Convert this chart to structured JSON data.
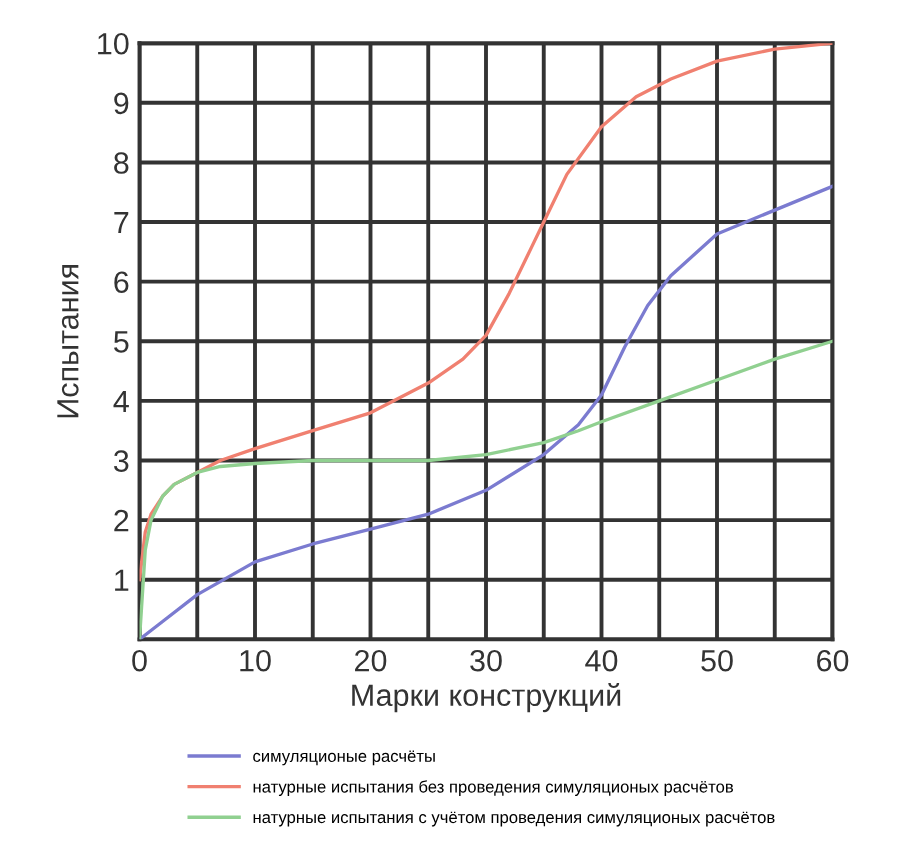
{
  "chart_data": {
    "type": "line",
    "xlabel": "Марки конструкций",
    "ylabel": "Испытания",
    "xlim": [
      0,
      60
    ],
    "ylim": [
      0,
      10
    ],
    "xticks": [
      0,
      {
        "value": 5,
        "label": null
      },
      10,
      {
        "value": 15,
        "label": null
      },
      20,
      {
        "value": 25,
        "label": null
      },
      30,
      {
        "value": 35,
        "label": null
      },
      40,
      {
        "value": 45,
        "label": null
      },
      50,
      {
        "value": 55,
        "label": null
      },
      60
    ],
    "yticks": [
      {
        "value": 0,
        "label": null
      },
      1,
      2,
      3,
      4,
      5,
      6,
      7,
      8,
      9,
      10
    ],
    "grid": true,
    "legend": "bottom",
    "marker": "none",
    "line_style": "solid",
    "series": [
      {
        "name": "симуляционые расчёты",
        "color": "#7b7bd0",
        "x": [
          0,
          2,
          5,
          10,
          15,
          20,
          25,
          30,
          35,
          38,
          40,
          42,
          44,
          46,
          50,
          55,
          60
        ],
        "values": [
          0,
          0.3,
          0.75,
          1.3,
          1.6,
          1.85,
          2.1,
          2.5,
          3.1,
          3.6,
          4.1,
          4.9,
          5.6,
          6.1,
          6.8,
          7.2,
          7.6
        ]
      },
      {
        "name": "натурные испытания без проведения симуляционых расчётов",
        "color": "#f08070",
        "x": [
          0,
          0.5,
          1,
          2,
          3,
          5,
          7,
          10,
          15,
          20,
          25,
          28,
          30,
          32,
          34,
          35,
          37,
          40,
          43,
          46,
          50,
          55,
          60
        ],
        "values": [
          1.0,
          1.8,
          2.1,
          2.4,
          2.6,
          2.8,
          3.0,
          3.2,
          3.5,
          3.8,
          4.3,
          4.7,
          5.1,
          5.8,
          6.6,
          7.0,
          7.8,
          8.6,
          9.1,
          9.4,
          9.7,
          9.9,
          10
        ]
      },
      {
        "name": "натурные испытания с учётом проведения симуляционых расчётов",
        "color": "#90d090",
        "x": [
          0,
          0.5,
          1,
          2,
          3,
          5,
          7,
          10,
          15,
          20,
          25,
          30,
          35,
          38,
          40,
          45,
          50,
          55,
          60
        ],
        "values": [
          0,
          1.5,
          2.0,
          2.4,
          2.6,
          2.8,
          2.9,
          2.95,
          3.0,
          3.0,
          3.0,
          3.1,
          3.3,
          3.5,
          3.65,
          4.0,
          4.35,
          4.7,
          5.0
        ]
      }
    ]
  }
}
